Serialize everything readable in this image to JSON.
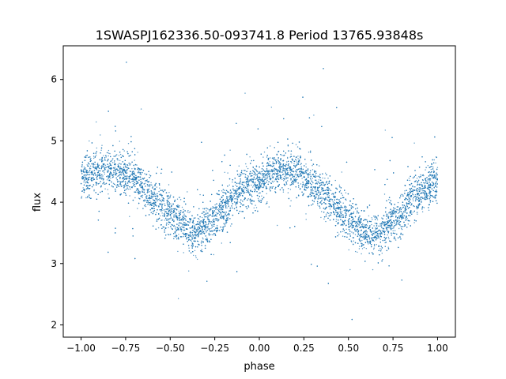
{
  "chart_data": {
    "type": "scatter",
    "title": "1SWASPJ162336.50-093741.8 Period 13765.93848s",
    "xlabel": "phase",
    "ylabel": "flux",
    "xlim": [
      -1.1,
      1.1
    ],
    "ylim": [
      1.8,
      6.55
    ],
    "xticks": [
      -1.0,
      -0.75,
      -0.5,
      -0.25,
      0.0,
      0.25,
      0.5,
      0.75,
      1.0
    ],
    "xtick_labels": [
      "−1.00",
      "−0.75",
      "−0.50",
      "−0.25",
      "0.00",
      "0.25",
      "0.50",
      "0.75",
      "1.00"
    ],
    "yticks": [
      2,
      3,
      4,
      5,
      6
    ],
    "ytick_labels": [
      "2",
      "3",
      "4",
      "5",
      "6"
    ],
    "grid": false,
    "marker_color": "#1f77b4",
    "series": [
      {
        "x": [
          -1.0,
          -0.9,
          -0.8,
          -0.7,
          -0.6,
          -0.5,
          -0.4,
          -0.35,
          -0.3,
          -0.2,
          -0.1,
          0.0,
          0.1,
          0.15,
          0.2,
          0.3,
          0.4,
          0.5,
          0.6,
          0.65,
          0.7,
          0.8,
          0.9,
          1.0
        ],
        "y": [
          4.4,
          4.5,
          4.5,
          4.4,
          4.1,
          3.8,
          3.55,
          3.5,
          3.6,
          3.9,
          4.2,
          4.35,
          4.5,
          4.52,
          4.5,
          4.3,
          4.0,
          3.75,
          3.5,
          3.45,
          3.55,
          3.85,
          4.15,
          4.35
        ]
      }
    ]
  }
}
